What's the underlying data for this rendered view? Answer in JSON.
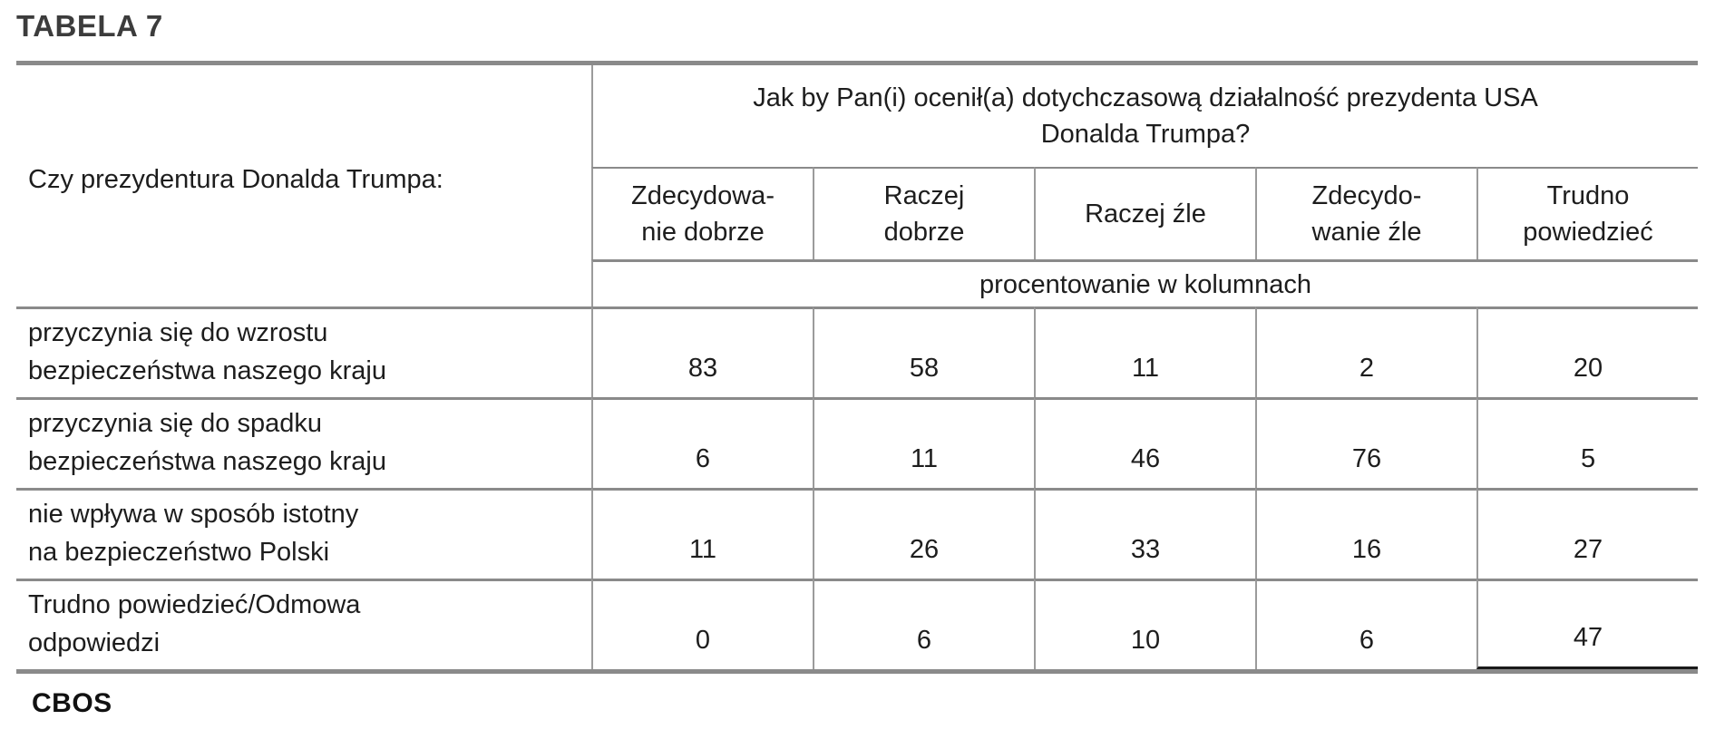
{
  "page": {
    "title": "TABELA 7",
    "footer_logo": "CBOS"
  },
  "table": {
    "stub_header": "Czy prezydentura Donalda Trumpa:",
    "question_header": "Jak by Pan(i) ocenił(a) dotychczasową działalność prezydenta USA\nDonalda Trumpa?",
    "unit_note": "procentowanie w kolumnach",
    "column_headers": [
      "Zdecydowa-\nnie dobrze",
      "Raczej\ndobrze",
      "Raczej źle",
      "Zdecydo-\nwanie źle",
      "Trudno\npowiedzieć"
    ],
    "rows": [
      {
        "label": "przyczynia się do wzrostu\nbezpieczeństwa naszego kraju",
        "values": [
          "83",
          "58",
          "11",
          "2",
          "20"
        ]
      },
      {
        "label": "przyczynia się do spadku\nbezpieczeństwa naszego kraju",
        "values": [
          "6",
          "11",
          "46",
          "76",
          "5"
        ]
      },
      {
        "label": "nie wpływa w sposób istotny\nna bezpieczeństwo Polski",
        "values": [
          "11",
          "26",
          "33",
          "16",
          "27"
        ]
      },
      {
        "label": "Trudno powiedzieć/Odmowa\nodpowiedzi",
        "values": [
          "0",
          "6",
          "10",
          "6",
          "47"
        ]
      }
    ]
  },
  "colors": {
    "border_thick_gray": "#8a8a8a",
    "border_thin_gray": "#9b9b9b",
    "text": "#1d1d1d",
    "title_text": "#3c3c3c",
    "background": "#ffffff"
  }
}
